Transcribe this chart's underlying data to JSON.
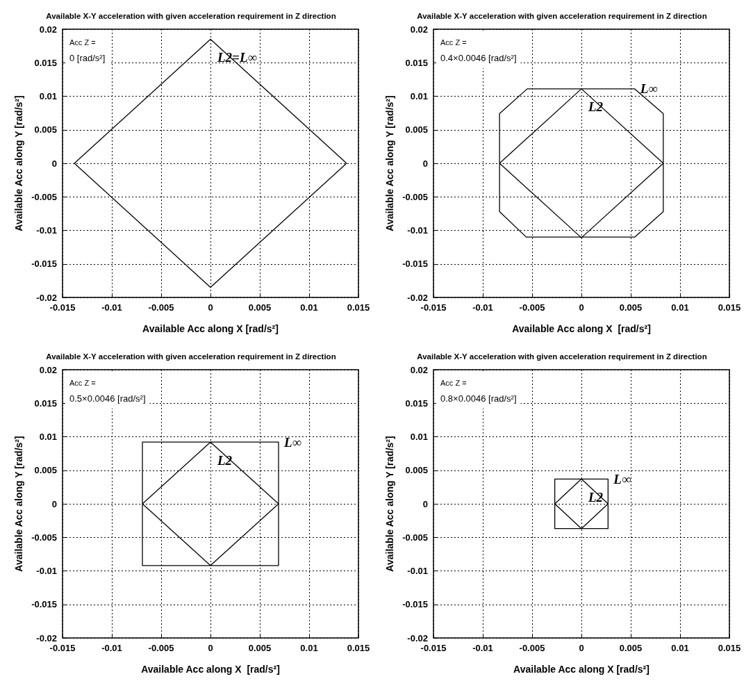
{
  "chart_data": [
    {
      "type": "line",
      "title": "Available X-Y acceleration with given acceleration requirement in Z direction",
      "xlabel": "Available Acc along X [rad/s²]",
      "ylabel": "Available Acc along Y [rad/s²]",
      "xlim": [
        -0.015,
        0.015
      ],
      "ylim": [
        -0.02,
        0.02
      ],
      "xticks": [
        -0.015,
        -0.01,
        -0.005,
        0,
        0.005,
        0.01,
        0.015
      ],
      "yticks": [
        -0.02,
        -0.015,
        -0.01,
        -0.005,
        0,
        0.005,
        0.01,
        0.015,
        0.02
      ],
      "grid": true,
      "series": [
        {
          "name": "L2=L∞",
          "color": "#000000",
          "x": [
            -0.0138,
            0,
            0.0138,
            null,
            -0.0138,
            0,
            0.0138
          ],
          "values": [
            0,
            0.0185,
            0,
            null,
            0,
            -0.0185,
            0
          ]
        }
      ],
      "annotations": [
        "Acc Z =",
        "0 [rad/s²]"
      ]
    },
    {
      "type": "line",
      "title": "Available X-Y acceleration with given acceleration requirement in Z direction",
      "xlabel": "Available Acc along X  [rad/s²]",
      "ylabel": "Available Acc along Y [rad/s²]",
      "xlim": [
        -0.015,
        0.015
      ],
      "ylim": [
        -0.02,
        0.02
      ],
      "xticks": [
        -0.015,
        -0.01,
        -0.005,
        0,
        0.005,
        0.01,
        0.015
      ],
      "yticks": [
        -0.02,
        -0.015,
        -0.01,
        -0.005,
        0,
        0.005,
        0.01,
        0.015,
        0.02
      ],
      "grid": true,
      "series": [
        {
          "name": "L2",
          "color": "#000000",
          "x": [
            -0.0083,
            0,
            0.0083,
            null,
            -0.0083,
            0,
            0.0083
          ],
          "values": [
            0,
            0.0111,
            0,
            null,
            0,
            -0.0111,
            0
          ]
        },
        {
          "name": "L∞",
          "color": "#000000",
          "x": [
            -0.0083,
            -0.0083,
            -0.0055,
            0.0054,
            0.0083,
            0.0083,
            null,
            -0.0083,
            -0.0083,
            -0.0056,
            0.0054,
            0.0083,
            0.0083
          ],
          "values": [
            0,
            0.0074,
            0.0111,
            0.0111,
            0.0074,
            0,
            null,
            0,
            -0.0072,
            -0.011,
            -0.011,
            -0.0072,
            0
          ]
        }
      ],
      "annotations": [
        "Acc Z =",
        "0.4×0.0046 [rad/s²]"
      ]
    },
    {
      "type": "line",
      "title": "Available X-Y acceleration with given acceleration requirement in Z direction",
      "xlabel": "Available Acc along X  [rad/s²]",
      "ylabel": "Available Acc along Y [rad/s²]",
      "xlim": [
        -0.015,
        0.015
      ],
      "ylim": [
        -0.02,
        0.02
      ],
      "xticks": [
        -0.015,
        -0.01,
        -0.005,
        0,
        0.005,
        0.01,
        0.015
      ],
      "yticks": [
        -0.02,
        -0.015,
        -0.01,
        -0.005,
        0,
        0.005,
        0.01,
        0.015,
        0.02
      ],
      "grid": true,
      "series": [
        {
          "name": "L2",
          "color": "#000000",
          "x": [
            -0.0069,
            0,
            0.0069,
            null,
            -0.0069,
            0,
            0.0069
          ],
          "values": [
            0,
            0.0092,
            0,
            null,
            0,
            -0.0092,
            0
          ]
        },
        {
          "name": "L∞",
          "color": "#000000",
          "x": [
            -0.0069,
            -0.0069,
            0.0069,
            0.0069,
            null,
            -0.0069,
            -0.0069,
            0.0069,
            0.0069
          ],
          "values": [
            0,
            0.0092,
            0.0092,
            0,
            null,
            0,
            -0.0092,
            -0.0092,
            0
          ]
        }
      ],
      "annotations": [
        "Acc Z =",
        "0.5×0.0046 [rad/s²]"
      ]
    },
    {
      "type": "line",
      "title": "Available X-Y acceleration with given acceleration requirement in Z direction",
      "xlabel": "Available Acc along X [rad/s²]",
      "ylabel": "Available Acc along Y [rad/s²]",
      "xlim": [
        -0.015,
        0.015
      ],
      "ylim": [
        -0.02,
        0.02
      ],
      "xticks": [
        -0.015,
        -0.01,
        -0.005,
        0,
        0.005,
        0.01,
        0.015
      ],
      "yticks": [
        -0.02,
        -0.015,
        -0.01,
        -0.005,
        0,
        0.005,
        0.01,
        0.015,
        0.02
      ],
      "grid": true,
      "series": [
        {
          "name": "L2",
          "color": "#000000",
          "x": [
            -0.0027,
            0,
            0.0027,
            null,
            -0.0027,
            0,
            0.0027
          ],
          "values": [
            0,
            0.0037,
            0,
            null,
            0,
            -0.0037,
            0
          ]
        },
        {
          "name": "L∞",
          "color": "#000000",
          "x": [
            -0.0027,
            -0.0027,
            0.0027,
            0.0027,
            null,
            -0.0027,
            -0.0027,
            0.0027,
            0.0027
          ],
          "values": [
            0,
            0.0037,
            0.0037,
            0,
            null,
            0,
            -0.0037,
            -0.0037,
            0
          ]
        }
      ],
      "annotations": [
        "Acc Z =",
        "0.8×0.0046 [rad/s²]"
      ]
    }
  ]
}
